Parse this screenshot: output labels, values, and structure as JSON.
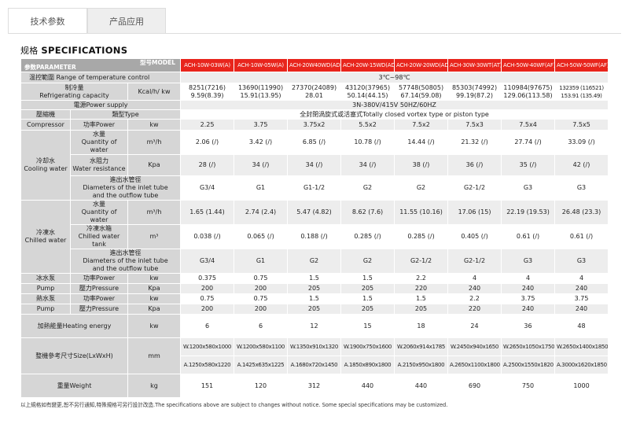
{
  "tabs": [
    "技术参数",
    "产品应用"
  ],
  "spec_title": {
    "cn": "规格",
    "en": "SPECIFICATIONS"
  },
  "header": {
    "model_label": "型号MODEL",
    "param_label": "参数PARAMETER"
  },
  "models": [
    "ACH-10W-03W(A)",
    "ACH-10W-05W(A)",
    "ACH-20W40WD(AD)",
    "ACH-20W-15WD(AD)",
    "ACH-20W-20WD(AD)",
    "ACH-30W-30WT(AT)",
    "ACH-50W-40WF(AF)",
    "ACH-50W-50WF(AF)"
  ],
  "rows": {
    "temp": {
      "label": "温控範圍 Range of temperature control",
      "value": "3℃~98℃"
    },
    "cap": {
      "label1": "制冷量",
      "label2": "Refrigerating capacity",
      "unit": "Kcal/h/ kw",
      "values": [
        [
          "8251(7216)",
          "9.59(8.39)"
        ],
        [
          "13690(11990)",
          "15.91(13.95)"
        ],
        [
          "27370(24089)",
          "28.01"
        ],
        [
          "43120(37965)",
          "50.14(44.15)"
        ],
        [
          "57748(50805)",
          "67.14(59.08)"
        ],
        [
          "85303(74992)",
          "99.19(87.2)"
        ],
        [
          "110984(97675)",
          "129.06(113.58)"
        ],
        [
          "132359 (116521)",
          "153.91 (135.49)"
        ]
      ]
    },
    "power": {
      "label": "電源Power supply",
      "value": "3N-380V/415V 50HZ/60HZ"
    },
    "comp_type": {
      "group": "壓縮機",
      "label": "類型Type",
      "value": "全封閉渦旋式或活塞式Totally closed vortex type or piston type"
    },
    "comp_power": {
      "group": "Compressor",
      "label": "功率Power",
      "unit": "kw",
      "values": [
        "2.25",
        "3.75",
        "3.75x2",
        "5.5x2",
        "7.5x2",
        "7.5x3",
        "7.5x4",
        "7.5x5"
      ]
    },
    "cool": {
      "group_cn": "冷却水",
      "group_en": "Cooling water",
      "qty": {
        "label1": "水量",
        "label2": "Quantity of water",
        "unit": "m³/h",
        "values": [
          "2.06 (/)",
          "3.42 (/)",
          "6.85 (/)",
          "10.78 (/)",
          "14.44 (/)",
          "21.32 (/)",
          "27.74 (/)",
          "33.09 (/)"
        ]
      },
      "res": {
        "label1": "水阻力",
        "label2": "Water resistance",
        "unit": "Kpa",
        "values": [
          "28 (/)",
          "34 (/)",
          "34 (/)",
          "34 (/)",
          "38 (/)",
          "36 (/)",
          "35 (/)",
          "42 (/)"
        ]
      },
      "dia": {
        "label1": "進出水管徑",
        "label2": "Diameters of the inlet tube",
        "label3": "and the outflow tube",
        "values": [
          "G3/4",
          "G1",
          "G1-1/2",
          "G2",
          "G2",
          "G2-1/2",
          "G3",
          "G3"
        ]
      }
    },
    "chill": {
      "group_cn": "冷凍水",
      "group_en": "Chilled water",
      "qty": {
        "label1": "水量",
        "label2": "Quantity of water",
        "unit": "m³/h",
        "values": [
          "1.65 (1.44)",
          "2.74 (2.4)",
          "5.47 (4.82)",
          "8.62 (7.6)",
          "11.55 (10.16)",
          "17.06 (15)",
          "22.19 (19.53)",
          "26.48 (23.3)"
        ]
      },
      "tank": {
        "label1": "冷凍水箱",
        "label2": "Chilled water tank",
        "unit": "m³",
        "values": [
          "0.038 (/)",
          "0.065 (/)",
          "0.188 (/)",
          "0.285 (/)",
          "0.285 (/)",
          "0.405 (/)",
          "0.61 (/)",
          "0.61 (/)"
        ]
      },
      "dia": {
        "label1": "進出水管徑",
        "label2": "Diameters of the inlet tube",
        "label3": "and the outflow tube",
        "values": [
          "G3/4",
          "G1",
          "G2",
          "G2",
          "G2-1/2",
          "G2-1/2",
          "G3",
          "G3"
        ]
      }
    },
    "ice_pump": {
      "power": {
        "group": "冰水泵",
        "label": "功率Power",
        "unit": "kw",
        "values": [
          "0.375",
          "0.75",
          "1.5",
          "1.5",
          "2.2",
          "4",
          "4",
          "4"
        ]
      },
      "press": {
        "group": "Pump",
        "label": "壓力Pressure",
        "unit": "Kpa",
        "values": [
          "200",
          "200",
          "205",
          "205",
          "220",
          "240",
          "240",
          "240"
        ]
      }
    },
    "hot_pump": {
      "power": {
        "group": "熱水泵",
        "label": "功率Power",
        "unit": "kw",
        "values": [
          "0.75",
          "0.75",
          "1.5",
          "1.5",
          "1.5",
          "2.2",
          "3.75",
          "3.75"
        ]
      },
      "press": {
        "group": "Pump",
        "label": "壓力Pressure",
        "unit": "Kpa",
        "values": [
          "200",
          "200",
          "205",
          "205",
          "205",
          "220",
          "240",
          "240"
        ]
      }
    },
    "heat": {
      "label": "加熱能量Heating energy",
      "unit": "kw",
      "values": [
        "6",
        "6",
        "12",
        "15",
        "18",
        "24",
        "36",
        "48"
      ]
    },
    "size": {
      "label": "整機參考尺寸Size(LxWxH)",
      "unit": "mm",
      "w": [
        "W.1200x580x1000",
        "W.1200x580x1100",
        "W.1350x910x1320",
        "W.1900x750x1600",
        "W.2060x914x1785",
        "W.2450x940x1650",
        "W.2650x1050x1750",
        "W.2650x1400x1850"
      ],
      "a": [
        "A.1250x580x1220",
        "A.1425x635x1225",
        "A.1680x720x1450",
        "A.1850x890x1800",
        "A.2150x950x1800",
        "A.2650x1100x1800",
        "A.2500x1550x1820",
        "A.3000x1620x1850"
      ]
    },
    "weight": {
      "label": "重量Weight",
      "unit": "kg",
      "values": [
        "151",
        "120",
        "312",
        "440",
        "440",
        "690",
        "750",
        "1000"
      ]
    }
  },
  "note": "以上規格如有變更,恕不另行通知,特殊規格可另行設計改造.The specifications above are subject to changes without notice. Some special specifications may be customized."
}
